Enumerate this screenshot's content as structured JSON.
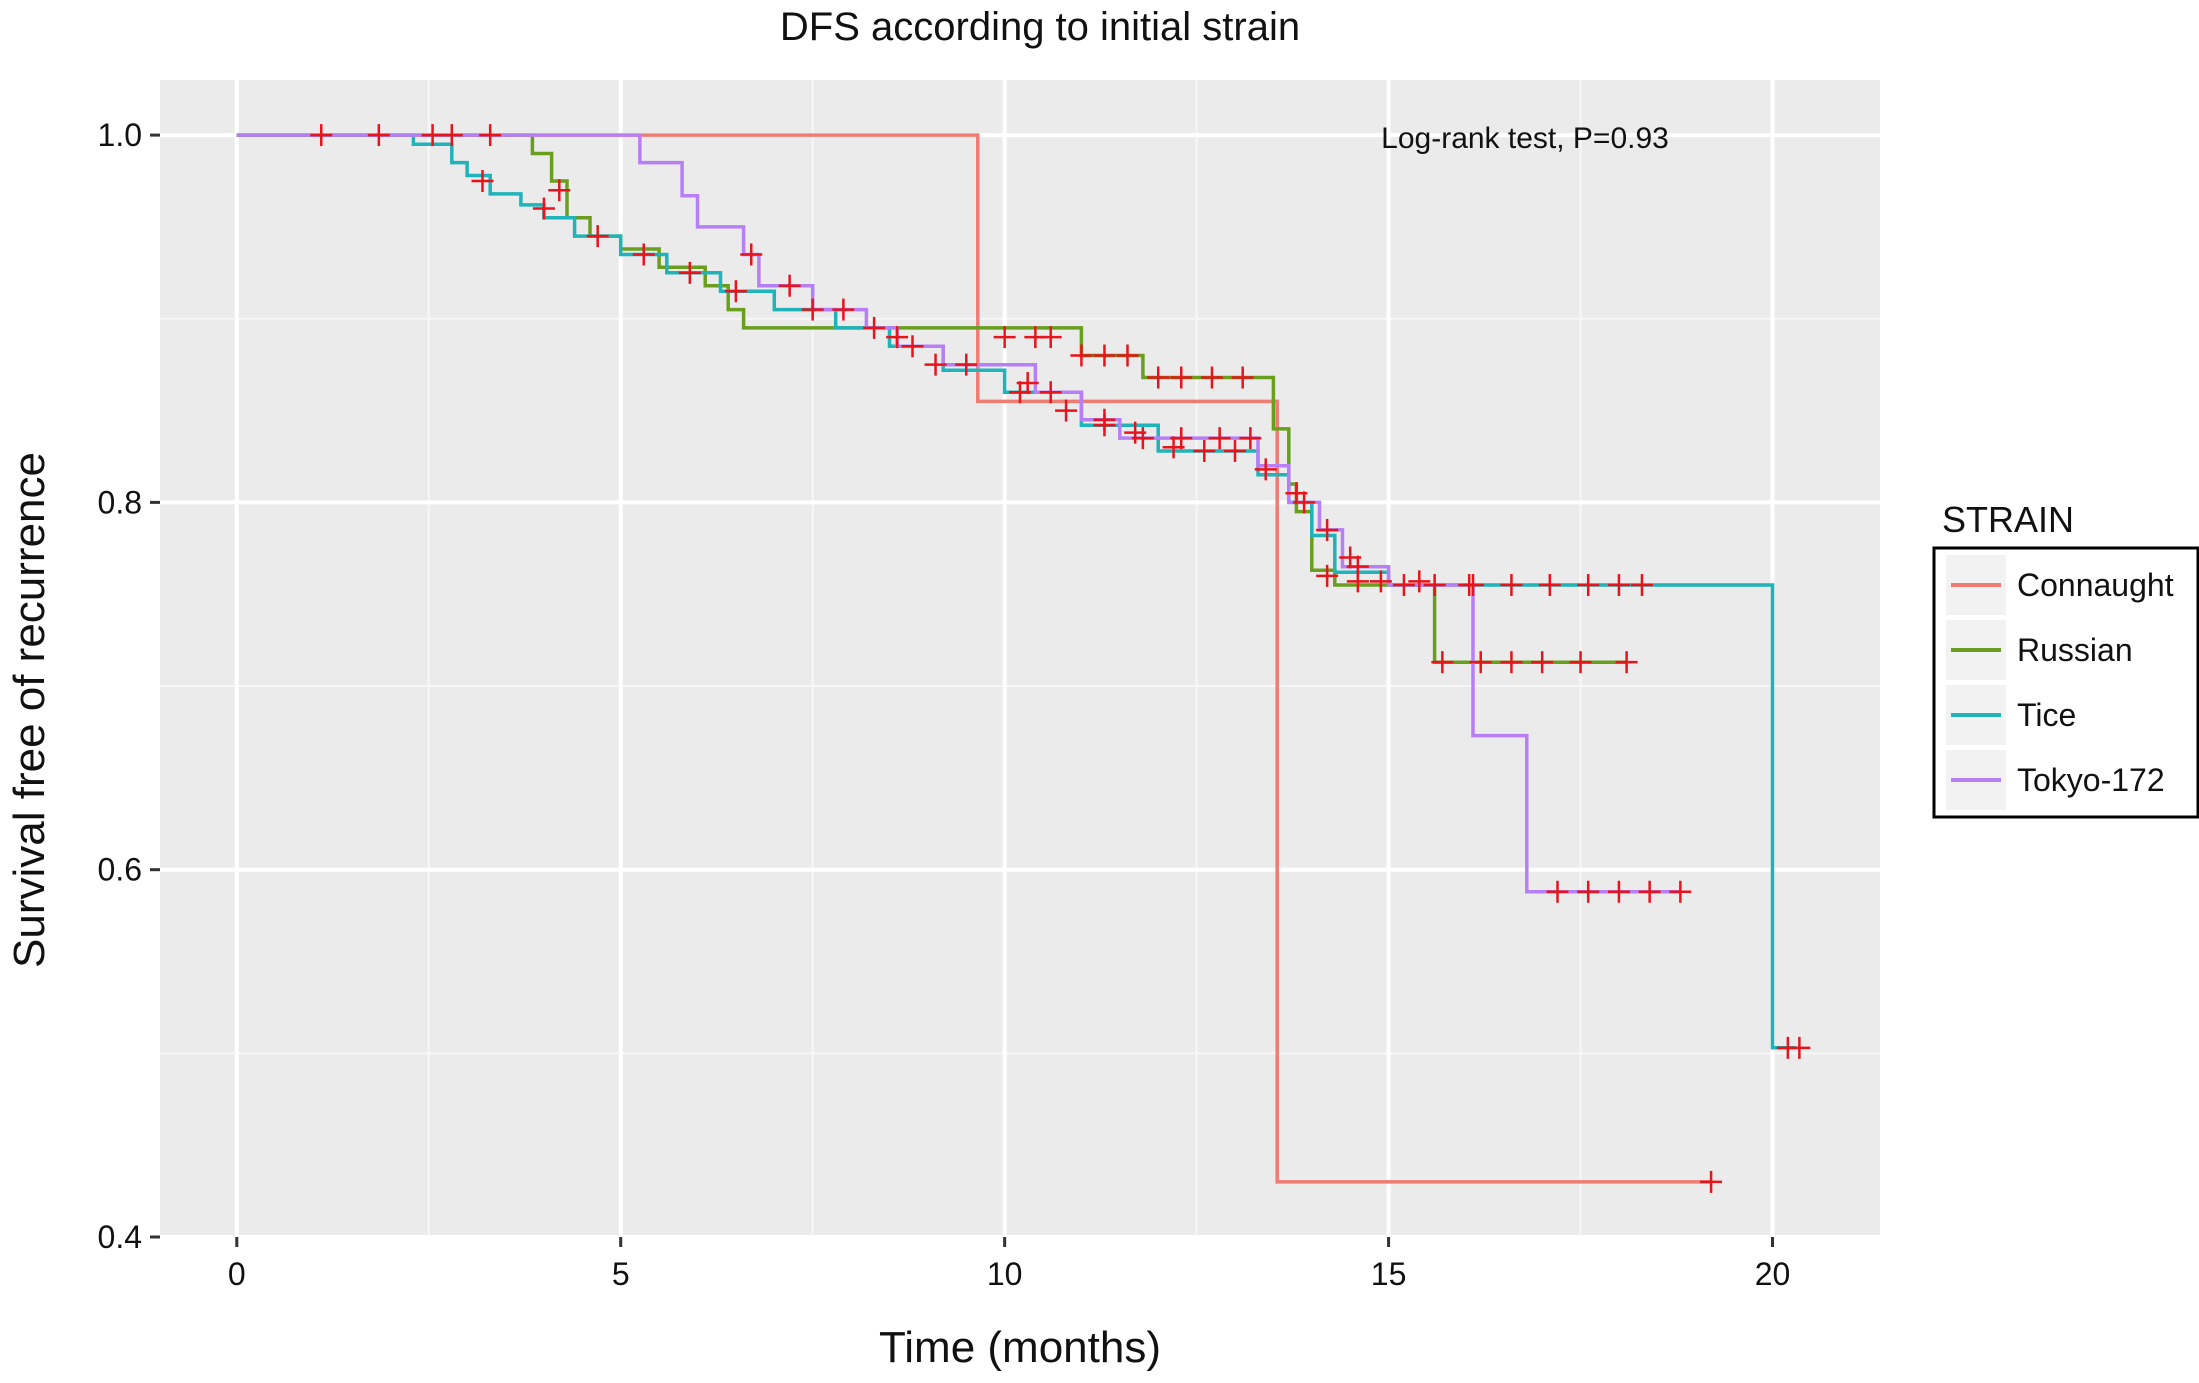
{
  "chart_data": {
    "type": "line",
    "title": "DFS according to initial strain",
    "xlabel": "Time (months)",
    "ylabel": "Survival free of recurrence",
    "xlim": [
      -1.0,
      21.4
    ],
    "ylim": [
      0.4,
      1.03
    ],
    "xticks": [
      0,
      5,
      10,
      15,
      20
    ],
    "xtick_labels": [
      "0",
      "5",
      "10",
      "15",
      "20"
    ],
    "yticks": [
      0.4,
      0.6,
      0.8,
      1.0
    ],
    "ytick_labels": [
      "0.4",
      "0.6",
      "0.8",
      "1.0"
    ],
    "grid": true,
    "legend_position": "right",
    "legend_title": "STRAIN",
    "annotation": "Log-rank test, P=0.93",
    "censor_color": "#e8141b",
    "series": [
      {
        "name": "Connaught",
        "color": "#f07b72",
        "steps": [
          [
            0,
            1.0
          ],
          [
            9.65,
            1.0
          ],
          [
            9.65,
            0.855
          ],
          [
            13.55,
            0.855
          ],
          [
            13.55,
            0.43
          ],
          [
            19.2,
            0.43
          ]
        ],
        "censors": [
          [
            19.2,
            0.43
          ]
        ]
      },
      {
        "name": "Russian",
        "color": "#6a9e1f",
        "steps": [
          [
            0,
            1.0
          ],
          [
            3.85,
            1.0
          ],
          [
            3.85,
            0.99
          ],
          [
            4.1,
            0.99
          ],
          [
            4.1,
            0.975
          ],
          [
            4.3,
            0.975
          ],
          [
            4.3,
            0.955
          ],
          [
            4.6,
            0.955
          ],
          [
            4.6,
            0.945
          ],
          [
            5.0,
            0.945
          ],
          [
            5.0,
            0.938
          ],
          [
            5.5,
            0.938
          ],
          [
            5.5,
            0.928
          ],
          [
            6.1,
            0.928
          ],
          [
            6.1,
            0.918
          ],
          [
            6.4,
            0.918
          ],
          [
            6.4,
            0.905
          ],
          [
            6.6,
            0.905
          ],
          [
            6.6,
            0.895
          ],
          [
            11.0,
            0.895
          ],
          [
            11.0,
            0.88
          ],
          [
            11.8,
            0.88
          ],
          [
            11.8,
            0.868
          ],
          [
            13.5,
            0.868
          ],
          [
            13.5,
            0.84
          ],
          [
            13.7,
            0.84
          ],
          [
            13.7,
            0.81
          ],
          [
            13.8,
            0.81
          ],
          [
            13.8,
            0.795
          ],
          [
            14.0,
            0.795
          ],
          [
            14.0,
            0.763
          ],
          [
            14.3,
            0.763
          ],
          [
            14.3,
            0.755
          ],
          [
            15.6,
            0.755
          ],
          [
            15.6,
            0.713
          ],
          [
            18.1,
            0.713
          ]
        ],
        "censors": [
          [
            4.2,
            0.97
          ],
          [
            10.0,
            0.89
          ],
          [
            10.4,
            0.89
          ],
          [
            10.6,
            0.89
          ],
          [
            11.0,
            0.88
          ],
          [
            11.3,
            0.88
          ],
          [
            11.6,
            0.88
          ],
          [
            12.0,
            0.868
          ],
          [
            12.3,
            0.868
          ],
          [
            12.7,
            0.868
          ],
          [
            13.1,
            0.868
          ],
          [
            14.2,
            0.76
          ],
          [
            14.6,
            0.757
          ],
          [
            15.7,
            0.713
          ],
          [
            16.2,
            0.713
          ],
          [
            16.6,
            0.713
          ],
          [
            17.0,
            0.713
          ],
          [
            17.5,
            0.713
          ],
          [
            18.1,
            0.713
          ]
        ]
      },
      {
        "name": "Tice",
        "color": "#1fb3ba",
        "steps": [
          [
            0,
            1.0
          ],
          [
            2.3,
            1.0
          ],
          [
            2.3,
            0.995
          ],
          [
            2.8,
            0.995
          ],
          [
            2.8,
            0.985
          ],
          [
            3.0,
            0.985
          ],
          [
            3.0,
            0.978
          ],
          [
            3.3,
            0.978
          ],
          [
            3.3,
            0.968
          ],
          [
            3.7,
            0.968
          ],
          [
            3.7,
            0.962
          ],
          [
            4.0,
            0.962
          ],
          [
            4.0,
            0.955
          ],
          [
            4.4,
            0.955
          ],
          [
            4.4,
            0.945
          ],
          [
            5.0,
            0.945
          ],
          [
            5.0,
            0.935
          ],
          [
            5.6,
            0.935
          ],
          [
            5.6,
            0.925
          ],
          [
            6.3,
            0.925
          ],
          [
            6.3,
            0.915
          ],
          [
            7.0,
            0.915
          ],
          [
            7.0,
            0.905
          ],
          [
            7.8,
            0.905
          ],
          [
            7.8,
            0.895
          ],
          [
            8.5,
            0.895
          ],
          [
            8.5,
            0.885
          ],
          [
            9.2,
            0.885
          ],
          [
            9.2,
            0.872
          ],
          [
            10.0,
            0.872
          ],
          [
            10.0,
            0.86
          ],
          [
            11.0,
            0.86
          ],
          [
            11.0,
            0.842
          ],
          [
            12.0,
            0.842
          ],
          [
            12.0,
            0.828
          ],
          [
            13.3,
            0.828
          ],
          [
            13.3,
            0.815
          ],
          [
            13.7,
            0.815
          ],
          [
            13.7,
            0.8
          ],
          [
            14.0,
            0.8
          ],
          [
            14.0,
            0.782
          ],
          [
            14.3,
            0.782
          ],
          [
            14.3,
            0.762
          ],
          [
            15.0,
            0.762
          ],
          [
            15.0,
            0.755
          ],
          [
            20.0,
            0.755
          ],
          [
            20.0,
            0.503
          ],
          [
            20.3,
            0.503
          ]
        ],
        "censors": [
          [
            3.2,
            0.975
          ],
          [
            4.0,
            0.96
          ],
          [
            4.7,
            0.945
          ],
          [
            5.3,
            0.935
          ],
          [
            5.9,
            0.925
          ],
          [
            6.5,
            0.915
          ],
          [
            7.5,
            0.905
          ],
          [
            8.6,
            0.89
          ],
          [
            9.5,
            0.875
          ],
          [
            10.2,
            0.86
          ],
          [
            10.8,
            0.85
          ],
          [
            11.3,
            0.845
          ],
          [
            11.7,
            0.838
          ],
          [
            12.2,
            0.83
          ],
          [
            12.6,
            0.828
          ],
          [
            13.0,
            0.828
          ],
          [
            13.4,
            0.818
          ],
          [
            13.8,
            0.805
          ],
          [
            14.2,
            0.785
          ],
          [
            14.6,
            0.765
          ],
          [
            14.9,
            0.757
          ],
          [
            15.2,
            0.755
          ],
          [
            15.6,
            0.755
          ],
          [
            16.1,
            0.755
          ],
          [
            16.6,
            0.755
          ],
          [
            17.1,
            0.755
          ],
          [
            17.6,
            0.755
          ],
          [
            18.0,
            0.755
          ],
          [
            18.3,
            0.755
          ],
          [
            20.2,
            0.503
          ],
          [
            20.35,
            0.503
          ]
        ]
      },
      {
        "name": "Tokyo-172",
        "color": "#b77ff5",
        "steps": [
          [
            0,
            1.0
          ],
          [
            5.25,
            1.0
          ],
          [
            5.25,
            0.985
          ],
          [
            5.8,
            0.985
          ],
          [
            5.8,
            0.967
          ],
          [
            6.0,
            0.967
          ],
          [
            6.0,
            0.95
          ],
          [
            6.6,
            0.95
          ],
          [
            6.6,
            0.935
          ],
          [
            6.8,
            0.935
          ],
          [
            6.8,
            0.918
          ],
          [
            7.5,
            0.918
          ],
          [
            7.5,
            0.905
          ],
          [
            8.2,
            0.905
          ],
          [
            8.2,
            0.895
          ],
          [
            8.6,
            0.895
          ],
          [
            8.6,
            0.885
          ],
          [
            9.2,
            0.885
          ],
          [
            9.2,
            0.875
          ],
          [
            10.4,
            0.875
          ],
          [
            10.4,
            0.86
          ],
          [
            11.0,
            0.86
          ],
          [
            11.0,
            0.845
          ],
          [
            11.5,
            0.845
          ],
          [
            11.5,
            0.835
          ],
          [
            13.3,
            0.835
          ],
          [
            13.3,
            0.82
          ],
          [
            13.7,
            0.82
          ],
          [
            13.7,
            0.8
          ],
          [
            14.1,
            0.8
          ],
          [
            14.1,
            0.785
          ],
          [
            14.4,
            0.785
          ],
          [
            14.4,
            0.765
          ],
          [
            15.0,
            0.765
          ],
          [
            15.0,
            0.755
          ],
          [
            16.1,
            0.755
          ],
          [
            16.1,
            0.673
          ],
          [
            16.8,
            0.673
          ],
          [
            16.8,
            0.588
          ],
          [
            18.8,
            0.588
          ]
        ],
        "censors": [
          [
            1.1,
            1.0
          ],
          [
            1.85,
            1.0
          ],
          [
            2.55,
            1.0
          ],
          [
            2.8,
            1.0
          ],
          [
            3.3,
            1.0
          ],
          [
            6.7,
            0.935
          ],
          [
            7.2,
            0.918
          ],
          [
            7.9,
            0.905
          ],
          [
            8.3,
            0.895
          ],
          [
            8.8,
            0.885
          ],
          [
            9.1,
            0.875
          ],
          [
            10.3,
            0.865
          ],
          [
            10.6,
            0.86
          ],
          [
            11.3,
            0.842
          ],
          [
            11.8,
            0.835
          ],
          [
            12.3,
            0.835
          ],
          [
            12.8,
            0.835
          ],
          [
            13.2,
            0.835
          ],
          [
            13.9,
            0.8
          ],
          [
            14.5,
            0.77
          ],
          [
            15.4,
            0.757
          ],
          [
            16.05,
            0.755
          ],
          [
            17.2,
            0.588
          ],
          [
            17.6,
            0.588
          ],
          [
            18.0,
            0.588
          ],
          [
            18.4,
            0.588
          ],
          [
            18.8,
            0.588
          ]
        ]
      }
    ]
  }
}
